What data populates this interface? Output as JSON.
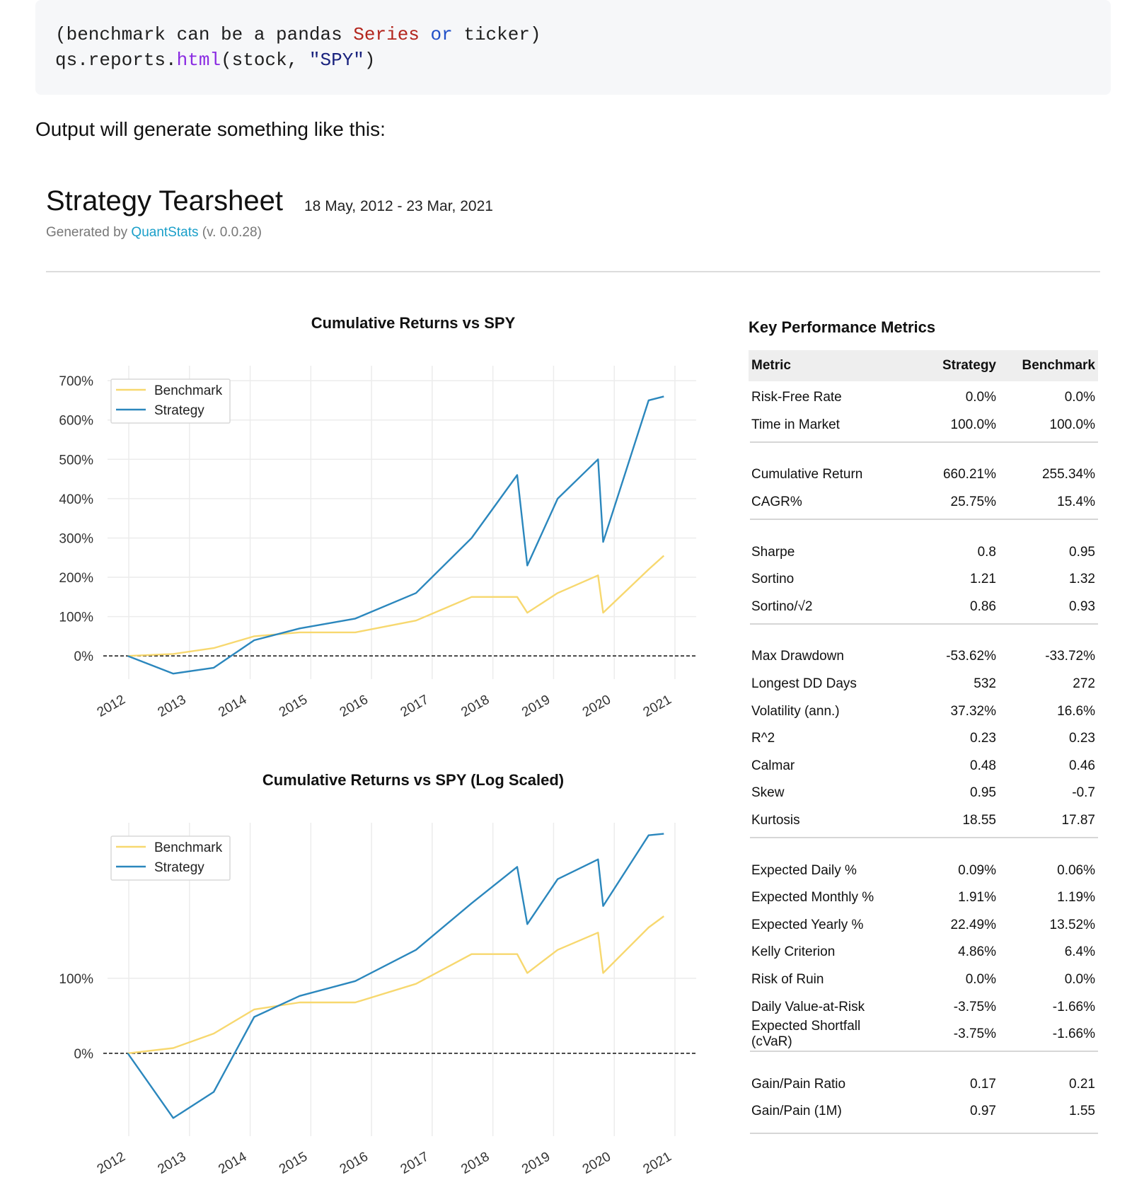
{
  "code": {
    "line1": {
      "a": "(benchmark can be a pandas ",
      "b": "Series",
      "c": " ",
      "d": "or",
      "e": " ticker)"
    },
    "line2": {
      "a": "qs.reports.",
      "b": "html",
      "c": "(stock, ",
      "d": "\"SPY\"",
      "e": ")"
    }
  },
  "intro_text": "Output will generate something like this:",
  "report": {
    "title": "Strategy Tearsheet",
    "date_range": "18 May, 2012 - 23 Mar, 2021",
    "generated_prefix": "Generated by ",
    "generated_link": "QuantStats",
    "generated_suffix": " (v. 0.0.28)"
  },
  "colors": {
    "benchmark": "#f7d86f",
    "strategy": "#2b87bd"
  },
  "chart_data": [
    {
      "type": "line",
      "title": "Cumulative Returns vs SPY",
      "x": [
        "2012-05",
        "2013-02",
        "2013-10",
        "2014-06",
        "2015-03",
        "2016-02",
        "2017-02",
        "2018-01",
        "2018-10",
        "2018-12",
        "2019-06",
        "2020-02",
        "2020-03",
        "2020-12",
        "2021-03"
      ],
      "series": [
        {
          "name": "Benchmark",
          "values": [
            0,
            5,
            20,
            50,
            60,
            60,
            90,
            150,
            150,
            110,
            160,
            205,
            110,
            220,
            255
          ]
        },
        {
          "name": "Strategy",
          "values": [
            0,
            -45,
            -30,
            40,
            70,
            95,
            160,
            300,
            460,
            230,
            400,
            500,
            290,
            650,
            660
          ]
        }
      ],
      "ylim": [
        -50,
        720
      ],
      "yticks": [
        "700%",
        "600%",
        "500%",
        "400%",
        "300%",
        "200%",
        "100%",
        "0%"
      ],
      "xticks": [
        "2012",
        "2013",
        "2014",
        "2015",
        "2016",
        "2017",
        "2018",
        "2019",
        "2020",
        "2021"
      ],
      "legend": "top-left",
      "grid": true
    },
    {
      "type": "line",
      "title": "Cumulative Returns vs SPY (Log Scaled)",
      "x": [
        "2012-05",
        "2013-02",
        "2013-10",
        "2014-06",
        "2015-03",
        "2016-02",
        "2017-02",
        "2018-01",
        "2018-10",
        "2018-12",
        "2019-06",
        "2020-02",
        "2020-03",
        "2020-12",
        "2021-03"
      ],
      "series": [
        {
          "name": "Benchmark",
          "values": [
            0,
            5,
            20,
            50,
            60,
            60,
            90,
            150,
            150,
            110,
            160,
            205,
            110,
            220,
            255
          ]
        },
        {
          "name": "Strategy",
          "values": [
            0,
            -45,
            -30,
            40,
            70,
            95,
            160,
            300,
            460,
            230,
            400,
            500,
            290,
            650,
            660
          ]
        }
      ],
      "yscale": "log",
      "yticks": [
        "100%",
        "0%"
      ],
      "xticks": [
        "2012",
        "2013",
        "2014",
        "2015",
        "2016",
        "2017",
        "2018",
        "2019",
        "2020",
        "2021"
      ],
      "legend": "top-left",
      "grid": true
    }
  ],
  "metrics": {
    "title": "Key Performance Metrics",
    "header": {
      "metric": "Metric",
      "strategy": "Strategy",
      "benchmark": "Benchmark"
    },
    "groups": [
      [
        [
          "Risk-Free Rate",
          "0.0%",
          "0.0%"
        ],
        [
          "Time in Market",
          "100.0%",
          "100.0%"
        ]
      ],
      [
        [
          "Cumulative Return",
          "660.21%",
          "255.34%"
        ],
        [
          "CAGR%",
          "25.75%",
          "15.4%"
        ]
      ],
      [
        [
          "Sharpe",
          "0.8",
          "0.95"
        ],
        [
          "Sortino",
          "1.21",
          "1.32"
        ],
        [
          "Sortino/√2",
          "0.86",
          "0.93"
        ]
      ],
      [
        [
          "Max Drawdown",
          "-53.62%",
          "-33.72%"
        ],
        [
          "Longest DD Days",
          "532",
          "272"
        ],
        [
          "Volatility (ann.)",
          "37.32%",
          "16.6%"
        ],
        [
          "R^2",
          "0.23",
          "0.23"
        ],
        [
          "Calmar",
          "0.48",
          "0.46"
        ],
        [
          "Skew",
          "0.95",
          "-0.7"
        ],
        [
          "Kurtosis",
          "18.55",
          "17.87"
        ]
      ],
      [
        [
          "Expected Daily %",
          "0.09%",
          "0.06%"
        ],
        [
          "Expected Monthly %",
          "1.91%",
          "1.19%"
        ],
        [
          "Expected Yearly %",
          "22.49%",
          "13.52%"
        ],
        [
          "Kelly Criterion",
          "4.86%",
          "6.4%"
        ],
        [
          "Risk of Ruin",
          "0.0%",
          "0.0%"
        ],
        [
          "Daily Value-at-Risk",
          "-3.75%",
          "-1.66%"
        ],
        [
          "Expected Shortfall (cVaR)",
          "-3.75%",
          "-1.66%"
        ]
      ],
      [
        [
          "Gain/Pain Ratio",
          "0.17",
          "0.21"
        ],
        [
          "Gain/Pain (1M)",
          "0.97",
          "1.55"
        ]
      ]
    ]
  }
}
